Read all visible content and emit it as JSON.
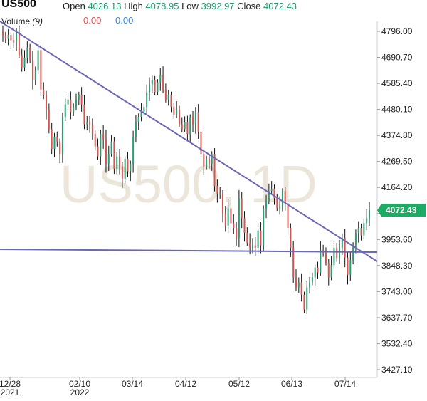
{
  "header": {
    "symbol": "US500",
    "open_label": "Open",
    "open_value": "4026.13",
    "high_label": "High",
    "high_value": "4078.95",
    "low_label": "Low",
    "low_value": "3992.97",
    "close_label": "Close",
    "close_value": "4072.43",
    "volume_label": "Volume",
    "volume_period": "(9)",
    "volume_value_1": "0.00",
    "volume_value_2": "0.00"
  },
  "watermark": "US500, 1D",
  "price_badge": "4072.43",
  "colors": {
    "up": "#2a9d72",
    "down": "#d9534f",
    "wick": "#111111",
    "trendline": "#6a66b8",
    "badge": "#1daa62",
    "watermark": "#ece6da"
  },
  "chart_data": {
    "type": "ohlc",
    "timeframe": "1D",
    "yaxis_ticks": [
      "4796.00",
      "4690.70",
      "4585.40",
      "4480.10",
      "4374.80",
      "4269.50",
      "4164.20",
      "4058.90",
      "3953.60",
      "3848.30",
      "3743.00",
      "3637.70",
      "3532.40",
      "3427.10"
    ],
    "xaxis_ticks": [
      {
        "label": "12/28",
        "sub": "2021"
      },
      {
        "label": "02/10",
        "sub": "2022"
      },
      {
        "label": "03/14",
        "sub": ""
      },
      {
        "label": "04/12",
        "sub": ""
      },
      {
        "label": "05/12",
        "sub": ""
      },
      {
        "label": "06/13",
        "sub": ""
      },
      {
        "label": "07/14",
        "sub": ""
      }
    ],
    "ylim": [
      3410,
      4830
    ],
    "trendlines": [
      {
        "from": {
          "date": "12/22/2021",
          "price": 4800
        },
        "to": {
          "date": "07/28/2022",
          "price": 3858
        }
      },
      {
        "from": {
          "date": "12/22/2021",
          "price": 3905
        },
        "to": {
          "date": "07/28/2022",
          "price": 3893
        }
      }
    ],
    "closes": [
      4780,
      4765,
      4782,
      4760,
      4750,
      4790,
      4700,
      4650,
      4690,
      4730,
      4680,
      4600,
      4640,
      4720,
      4560,
      4540,
      4480,
      4400,
      4320,
      4370,
      4350,
      4300,
      4450,
      4500,
      4520,
      4470,
      4490,
      4520,
      4540,
      4500,
      4420,
      4430,
      4420,
      4380,
      4330,
      4290,
      4380,
      4360,
      4260,
      4300,
      4350,
      4240,
      4290,
      4250,
      4200,
      4280,
      4230,
      4260,
      4370,
      4430,
      4450,
      4470,
      4490,
      4550,
      4580,
      4600,
      4550,
      4590,
      4620,
      4560,
      4520,
      4540,
      4490,
      4460,
      4480,
      4420,
      4400,
      4430,
      4380,
      4450,
      4420,
      4470,
      4390,
      4300,
      4250,
      4280,
      4260,
      4300,
      4170,
      4140,
      4140,
      4060,
      4010,
      4080,
      4020,
      4000,
      3960,
      4120,
      4040,
      3980,
      3940,
      3920,
      3930,
      3920,
      3990,
      3930,
      4080,
      4110,
      4150,
      4160,
      4120,
      4080,
      4090,
      4150,
      4100,
      4000,
      3920,
      3800,
      3760,
      3780,
      3730,
      3670,
      3760,
      3780,
      3800,
      3840,
      3820,
      3910,
      3900,
      3860,
      3800,
      3850,
      3920,
      3880,
      3920,
      3960,
      3880,
      3810,
      3870,
      3930,
      3980,
      4000,
      3970,
      4020,
      4040,
      4072
    ]
  }
}
